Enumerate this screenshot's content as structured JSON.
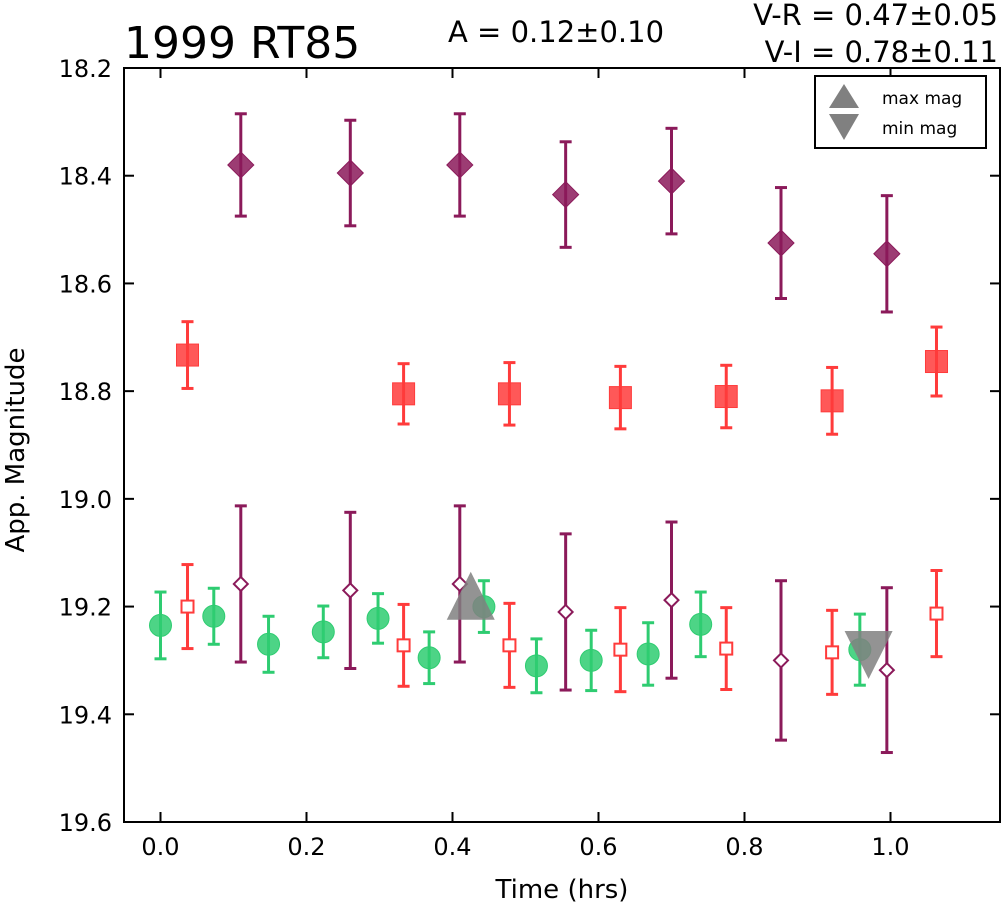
{
  "chart_data": {
    "type": "scatter",
    "title": "1999 RT85",
    "annotations": {
      "amplitude": "A  = 0.12±0.10",
      "v_r": "V-R = 0.47±0.05",
      "v_i": "V-I  = 0.78±0.11"
    },
    "xlabel": "Time (hrs)",
    "ylabel": "App. Magnitude",
    "xlim": [
      -0.05,
      1.15
    ],
    "ylim": [
      19.6,
      18.2
    ],
    "y_inverted": true,
    "grid": false,
    "x_ticks": [
      "0.0",
      "0.2",
      "0.4",
      "0.6",
      "0.8",
      "1.0"
    ],
    "y_ticks": [
      "18.2",
      "18.4",
      "18.6",
      "18.8",
      "19.0",
      "19.2",
      "19.4",
      "19.6"
    ],
    "legend": {
      "placement": "top-right",
      "entries": [
        {
          "label": "max mag",
          "marker": "triangle-up",
          "color": "#808080"
        },
        {
          "label": "min mag",
          "marker": "triangle-down",
          "color": "#808080"
        }
      ]
    },
    "series": [
      {
        "marker": "diamond-filled",
        "color": "#8B1A5A",
        "x": [
          0.11,
          0.26,
          0.41,
          0.555,
          0.7,
          0.85,
          0.995
        ],
        "y": [
          18.38,
          18.395,
          18.38,
          18.435,
          18.41,
          18.525,
          18.545
        ],
        "err": [
          0.095,
          0.098,
          0.095,
          0.098,
          0.098,
          0.103,
          0.108
        ]
      },
      {
        "marker": "square-filled",
        "color": "#FF3B3B",
        "x": [
          0.037,
          0.333,
          0.478,
          0.63,
          0.775,
          0.92,
          1.063
        ],
        "y": [
          18.733,
          18.805,
          18.805,
          18.812,
          18.81,
          18.818,
          18.745
        ],
        "err": [
          0.062,
          0.056,
          0.058,
          0.058,
          0.058,
          0.062,
          0.064
        ]
      },
      {
        "marker": "circle-filled",
        "color": "#2ECC71",
        "x": [
          0.0,
          0.073,
          0.148,
          0.223,
          0.298,
          0.368,
          0.443,
          0.515,
          0.59,
          0.668,
          0.74,
          0.958
        ],
        "y": [
          19.235,
          19.218,
          19.27,
          19.247,
          19.222,
          19.295,
          19.2,
          19.31,
          19.3,
          19.288,
          19.233,
          19.28
        ],
        "err": [
          0.062,
          0.052,
          0.052,
          0.048,
          0.046,
          0.048,
          0.048,
          0.05,
          0.056,
          0.058,
          0.06,
          0.066
        ]
      },
      {
        "marker": "square-open",
        "color": "#FF3B3B",
        "x": [
          0.037,
          0.333,
          0.478,
          0.63,
          0.775,
          0.92,
          1.063
        ],
        "y": [
          19.2,
          19.272,
          19.272,
          19.28,
          19.278,
          19.285,
          19.213
        ],
        "err": [
          0.078,
          0.076,
          0.078,
          0.078,
          0.076,
          0.078,
          0.08
        ]
      },
      {
        "marker": "diamond-open",
        "color": "#8B1A5A",
        "x": [
          0.11,
          0.26,
          0.41,
          0.555,
          0.7,
          0.85,
          0.995
        ],
        "y": [
          19.158,
          19.17,
          19.158,
          19.21,
          19.188,
          19.3,
          19.318
        ],
        "err": [
          0.145,
          0.145,
          0.145,
          0.145,
          0.145,
          0.148,
          0.153
        ]
      }
    ],
    "extrema": [
      {
        "label": "max mag",
        "marker": "triangle-up",
        "x": 0.425,
        "y": 19.18,
        "color": "#808080"
      },
      {
        "label": "min mag",
        "marker": "triangle-down",
        "x": 0.97,
        "y": 19.29,
        "color": "#808080"
      }
    ]
  }
}
